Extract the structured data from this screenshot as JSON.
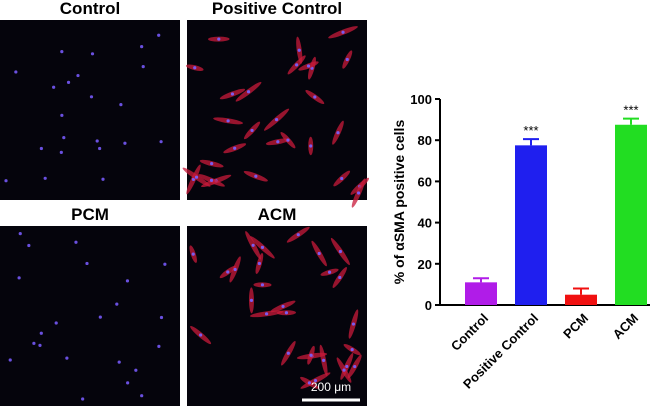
{
  "panels": [
    {
      "label": "Control"
    },
    {
      "label": "Positive Control"
    },
    {
      "label": "PCM"
    },
    {
      "label": "ACM"
    }
  ],
  "scale_bar": "200 μm",
  "chart_data": {
    "type": "bar",
    "y_label": "% of αSMA positive cells",
    "categories": [
      "Control",
      "Positive Control",
      "PCM",
      "ACM"
    ],
    "values": [
      11,
      77.5,
      5,
      87.5
    ],
    "errors": [
      2,
      3,
      3,
      3
    ],
    "colors": [
      "#b01ce8",
      "#1f1fef",
      "#f01010",
      "#22dd22"
    ],
    "significance": [
      null,
      "***",
      null,
      "***"
    ],
    "ylim": [
      0,
      100
    ],
    "yticks": [
      0,
      20,
      40,
      60,
      80,
      100
    ]
  }
}
